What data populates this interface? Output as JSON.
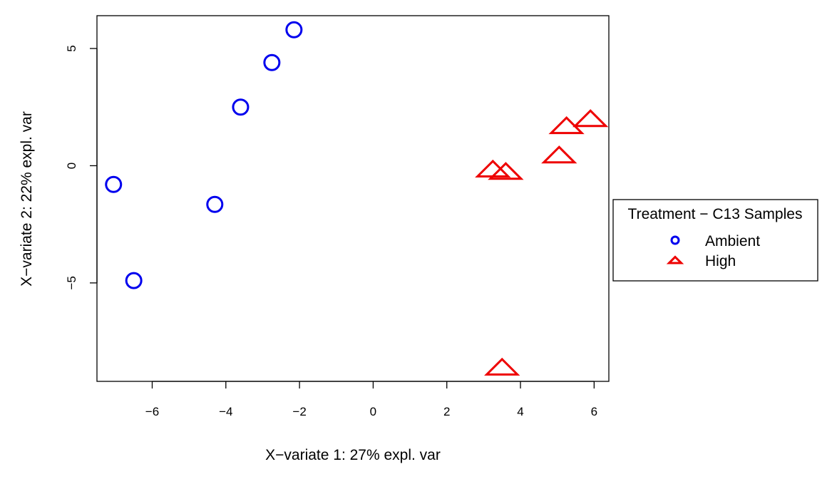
{
  "chart_data": {
    "type": "scatter",
    "xlabel": "X−variate 1: 27% expl. var",
    "ylabel": "X−variate 2: 22% expl. var",
    "xlim": [
      -7.5,
      6.4
    ],
    "ylim": [
      -9.2,
      6.4
    ],
    "xticks": [
      -6,
      -4,
      -2,
      0,
      2,
      4,
      6
    ],
    "xtick_labels": [
      "−6",
      "−4",
      "−2",
      "0",
      "2",
      "4",
      "6"
    ],
    "yticks": [
      -5,
      0,
      5
    ],
    "ytick_labels": [
      "−5",
      "0",
      "5"
    ],
    "grid": false,
    "legend": {
      "title": "Treatment − C13 Samples",
      "placement": "right",
      "entries": [
        {
          "label": "Ambient",
          "color": "#0000ee",
          "marker": "circle"
        },
        {
          "label": "High",
          "color": "#ee0000",
          "marker": "triangle"
        }
      ]
    },
    "series": [
      {
        "name": "Ambient",
        "color": "#0000ee",
        "marker": "circle",
        "points": [
          {
            "x": -7.05,
            "y": -0.8
          },
          {
            "x": -6.5,
            "y": -4.9
          },
          {
            "x": -4.3,
            "y": -1.65
          },
          {
            "x": -3.6,
            "y": 2.5
          },
          {
            "x": -2.75,
            "y": 4.4
          },
          {
            "x": -2.15,
            "y": 5.8
          }
        ]
      },
      {
        "name": "High",
        "color": "#ee0000",
        "marker": "triangle",
        "points": [
          {
            "x": 3.25,
            "y": -0.15
          },
          {
            "x": 3.6,
            "y": -0.25
          },
          {
            "x": 5.05,
            "y": 0.45
          },
          {
            "x": 5.25,
            "y": 1.7
          },
          {
            "x": 5.9,
            "y": 2.0
          },
          {
            "x": 3.5,
            "y": -8.6
          }
        ]
      }
    ]
  }
}
